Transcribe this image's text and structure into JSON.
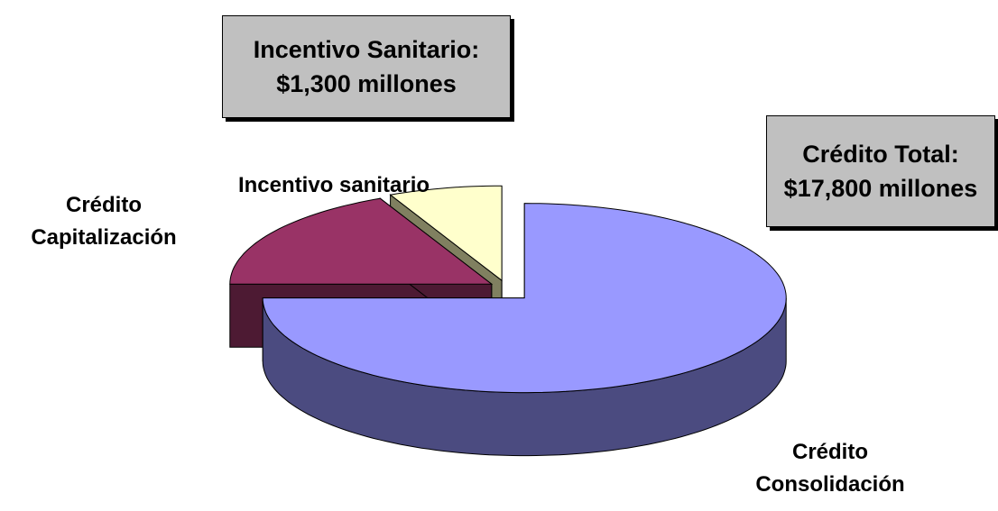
{
  "chart_data": {
    "type": "pie",
    "categories": [
      "Crédito Consolidación",
      "Crédito Capitalización",
      "Incentivo sanitario"
    ],
    "values": [
      75,
      18,
      7
    ],
    "colors": [
      "#9999ff",
      "#993366",
      "#ffffcc"
    ],
    "side_colors": [
      "#4b4b80",
      "#4d1a33",
      "#808060"
    ],
    "annotations": [
      {
        "lines": [
          "Incentivo Sanitario:",
          "$1,300 millones"
        ]
      },
      {
        "lines": [
          "Crédito Total:",
          "$17,800 millones"
        ]
      }
    ]
  }
}
